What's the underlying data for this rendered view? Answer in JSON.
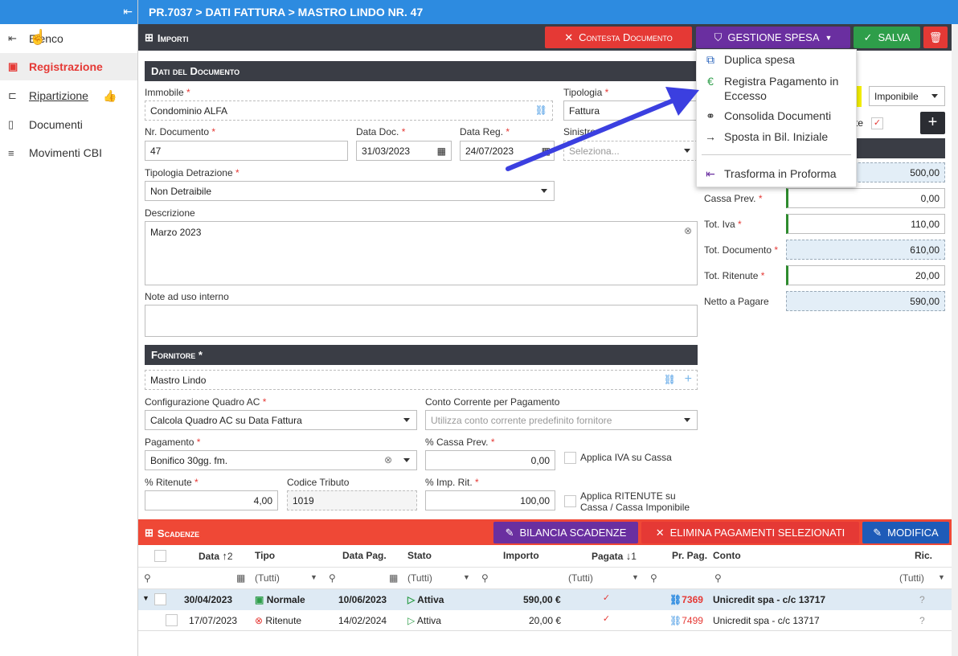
{
  "breadcrumb": "PR.7037 > DATI FATTURA > MASTRO LINDO NR. 47",
  "sidebar": {
    "items": [
      {
        "label": "Elenco",
        "icon": "back-arrow-icon"
      },
      {
        "label": "Registrazione",
        "icon": "id-card-icon"
      },
      {
        "label": "Ripartizione",
        "icon": "tree-icon"
      },
      {
        "label": "Documenti",
        "icon": "pdf-file-icon"
      },
      {
        "label": "Movimenti CBI",
        "icon": "list-icon"
      }
    ]
  },
  "importi": {
    "title": "Importi",
    "contesta": "Contesta Documento",
    "gestione": "GESTIONE SPESA",
    "salva": "SALVA"
  },
  "menu": [
    "Duplica spesa",
    "Registra Pagamento in Eccesso",
    "Consolida Documenti",
    "Sposta in Bil. Iniziale",
    "Trasforma in Proforma"
  ],
  "doc": {
    "title": "Dati del Documento",
    "immobile_label": "Immobile",
    "immobile": "Condominio ALFA",
    "tipologia_label": "Tipologia",
    "tipologia": "Fattura",
    "imponibile": "Imponibile",
    "nr_label": "Nr. Documento",
    "nr": "47",
    "datadoc_label": "Data Doc.",
    "datadoc": "31/03/2023",
    "datareg_label": "Data Reg.",
    "datareg": "24/07/2023",
    "sinistro_label": "Sinistro",
    "sinistro_ph": "Seleziona...",
    "detrazione_label": "Tipologia Detrazione",
    "detrazione": "Non Detraibile",
    "descrizione_label": "Descrizione",
    "descrizione": "Marzo 2023",
    "note_label": "Note ad uso interno",
    "te_fragment": "te"
  },
  "totali": {
    "imponibile_value": "500,00",
    "cassa_label": "Cassa Prev.",
    "cassa": "0,00",
    "iva_label": "Tot. Iva",
    "iva": "110,00",
    "documento_label": "Tot. Documento",
    "documento": "610,00",
    "ritenute_label": "Tot. Ritenute",
    "ritenute": "20,00",
    "netto_label": "Netto a Pagare",
    "netto": "590,00"
  },
  "fornitore": {
    "title": "Fornitore *",
    "name": "Mastro Lindo",
    "quadro_label": "Configurazione Quadro AC",
    "quadro": "Calcola Quadro AC su Data Fattura",
    "conto_label": "Conto Corrente per Pagamento",
    "conto_ph": "Utilizza conto corrente predefinito fornitore",
    "pagamento_label": "Pagamento",
    "pagamento": "Bonifico 30gg. fm.",
    "cassaprev_label": "% Cassa Prev.",
    "cassaprev": "0,00",
    "applica_iva": "Applica IVA su Cassa",
    "ritenute_label": "% Ritenute",
    "ritenute": "4,00",
    "tributo_label": "Codice Tributo",
    "tributo": "1019",
    "imprit_label": "% Imp. Rit.",
    "imprit": "100,00",
    "applica_rit1": "Applica RITENUTE su",
    "applica_rit2": "Cassa / Cassa Imponibile"
  },
  "scadenze": {
    "title": "Scadenze",
    "bilancia": "BILANCIA SCADENZE",
    "elimina": "ELIMINA PAGAMENTI SELEZIONATI",
    "modifica": "MODIFICA",
    "headers": {
      "data": "Data",
      "tipo": "Tipo",
      "datapag": "Data Pag.",
      "stato": "Stato",
      "importo": "Importo",
      "pagata": "Pagata",
      "prpag": "Pr. Pag.",
      "conto": "Conto",
      "ric": "Ric."
    },
    "sort_data": "2",
    "sort_pagata": "1",
    "filter": "(Tutti)",
    "rows": [
      {
        "data": "30/04/2023",
        "tipo": "Normale",
        "datapag": "10/06/2023",
        "stato": "Attiva",
        "importo": "590,00 €",
        "prpag": "7369",
        "conto": "Unicredit spa - c/c 13717",
        "ric": "?"
      },
      {
        "data": "17/07/2023",
        "tipo": "Ritenute",
        "datapag": "14/02/2024",
        "stato": "Attiva",
        "importo": "20,00 €",
        "prpag": "7499",
        "conto": "Unicredit spa - c/c 13717",
        "ric": "?"
      }
    ]
  },
  "colors": {
    "blue": "#2d8be0",
    "red": "#e53935",
    "dark": "#3a3d45",
    "purple": "#6a2fa0",
    "green": "#2e9e4a",
    "arrow": "#3b3fe0"
  }
}
